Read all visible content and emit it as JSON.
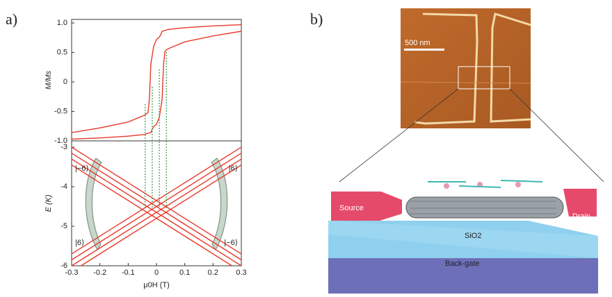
{
  "chart_data": [
    {
      "type": "line",
      "panel_label": "a)",
      "y_label": "M/Ms",
      "xlim": [
        -0.3,
        0.3
      ],
      "ylim": [
        -1,
        1.06
      ],
      "yticks": [
        {
          "value": 1,
          "label": "1.0"
        },
        0.5,
        0,
        -0.5,
        {
          "value": -1,
          "label": "-1.0"
        }
      ],
      "series": [
        {
          "color": "#e8392b",
          "x": [
            0.3,
            0.2,
            0.1,
            0.04,
            0.03,
            0.02,
            0.015,
            0.01,
            0.0,
            -0.01,
            -0.02,
            -0.025,
            -0.03,
            -0.04,
            -0.1,
            -0.2,
            -0.3
          ],
          "values": [
            0.97,
            0.95,
            0.92,
            0.89,
            0.87,
            0.86,
            0.8,
            0.76,
            0.72,
            0.6,
            0.3,
            -0.3,
            -0.52,
            -0.56,
            -0.68,
            -0.78,
            -0.86
          ]
        },
        {
          "color": "#e8392b",
          "x": [
            -0.3,
            -0.2,
            -0.1,
            -0.04,
            -0.03,
            -0.02,
            -0.015,
            -0.01,
            0.0,
            0.01,
            0.02,
            0.025,
            0.03,
            0.04,
            0.1,
            0.2,
            0.3
          ],
          "values": [
            -0.97,
            -0.95,
            -0.92,
            -0.89,
            -0.87,
            -0.86,
            -0.8,
            -0.76,
            -0.72,
            -0.6,
            -0.3,
            0.3,
            0.52,
            0.56,
            0.68,
            0.78,
            0.86
          ]
        }
      ]
    },
    {
      "type": "line",
      "y_label": "E (K)",
      "x_label": "μ0H (T)",
      "xlim": [
        -0.3,
        0.3
      ],
      "ylim": [
        -6,
        -2.84
      ],
      "xticks": [
        -0.3,
        -0.2,
        -0.1,
        0,
        0.1,
        0.2,
        0.3
      ],
      "yticks": [
        -3,
        -4,
        -5,
        -6
      ],
      "markers_x": [
        -0.04,
        -0.015,
        0.01,
        0.035
      ],
      "annotations": [
        "|−6⟩",
        "|6⟩",
        "|6⟩",
        "|−6⟩"
      ],
      "series": [
        {
          "color": "#e8392b",
          "x": [
            -0.3,
            0.3
          ],
          "values": [
            -3.0,
            -5.7
          ]
        },
        {
          "color": "#e8392b",
          "x": [
            -0.3,
            0.3
          ],
          "values": [
            -3.15,
            -5.85
          ]
        },
        {
          "color": "#e8392b",
          "x": [
            -0.3,
            0.3
          ],
          "values": [
            -3.3,
            -6.0
          ]
        },
        {
          "color": "#e8392b",
          "x": [
            -0.3,
            0.3
          ],
          "values": [
            -3.45,
            -6.15
          ]
        },
        {
          "color": "#e8392b",
          "x": [
            -0.3,
            0.3
          ],
          "values": [
            -5.7,
            -3.0
          ]
        },
        {
          "color": "#e8392b",
          "x": [
            -0.3,
            0.3
          ],
          "values": [
            -5.85,
            -3.15
          ]
        },
        {
          "color": "#e8392b",
          "x": [
            -0.3,
            0.3
          ],
          "values": [
            -6.0,
            -3.3
          ]
        },
        {
          "color": "#e8392b",
          "x": [
            -0.3,
            0.3
          ],
          "values": [
            -6.15,
            -3.45
          ]
        }
      ]
    }
  ],
  "panel_b": {
    "label": "b)",
    "scale_bar": "500 nm",
    "source": "Source",
    "drain": "Drain",
    "oxide": "SiO2",
    "gate": "Back-gate"
  }
}
